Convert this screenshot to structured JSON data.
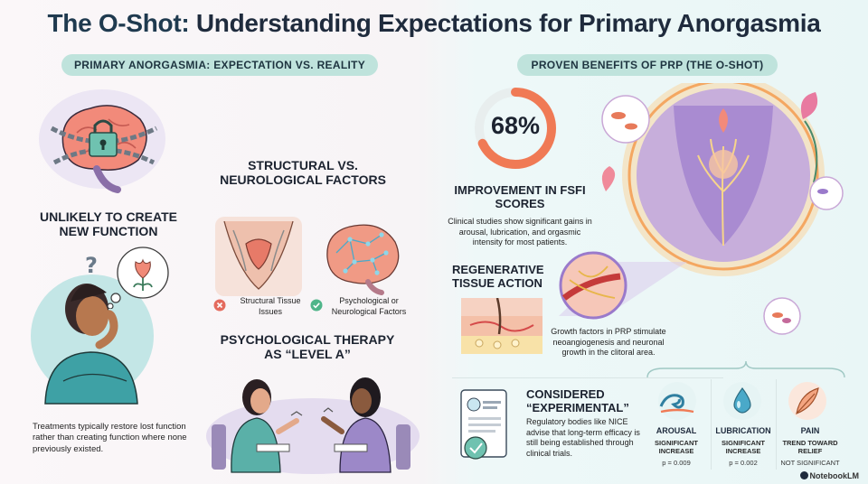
{
  "title": {
    "brand": "The O-Shot:",
    "rest": " Understanding Expectations for Primary Anorgasmia"
  },
  "left": {
    "pill": "PRIMARY ANORGASMIA: EXPECTATION VS. REALITY",
    "unlikely_heading": "UNLIKELY TO CREATE NEW FUNCTION",
    "treatments_text": "Treatments typically restore lost function rather than creating function where none previously existed.",
    "structural_heading": "STRUCTURAL VS. NEUROLOGICAL FACTORS",
    "structural_label": "Structural Tissue Issues",
    "neuro_label": "Psychological or Neurological Factors",
    "therapy_heading": "PSYCHOLOGICAL THERAPY AS “LEVEL A”"
  },
  "right": {
    "pill": "PROVEN BENEFITS OF PRP (THE O-SHOT)",
    "percent": "68%",
    "improvement_heading": "IMPROVEMENT IN FSFI SCORES",
    "improvement_text": "Clinical studies show significant gains in arousal, lubrication, and orgasmic intensity for most patients.",
    "regen_heading": "REGENERATIVE TISSUE ACTION",
    "regen_text": "Growth factors in PRP stimulate neoangiogenesis and neuronal growth in the clitoral area.",
    "experimental_heading": "CONSIDERED “EXPERIMENTAL”",
    "experimental_text": "Regulatory bodies like NICE advise that long-term efficacy is still being established through clinical trials.",
    "stats": [
      {
        "title": "AROUSAL",
        "sub": "SIGNIFICANT INCREASE",
        "p": "p = 0.009"
      },
      {
        "title": "LUBRICATION",
        "sub": "SIGNIFICANT INCREASE",
        "p": "p = 0.002"
      },
      {
        "title": "PAIN",
        "sub": "TREND TOWARD RELIEF",
        "p": "NOT SIGNIFICANT"
      }
    ]
  },
  "footer": "NotebookLM",
  "colors": {
    "pill": "#bfe3dc",
    "accent_orange": "#f07a55",
    "accent_teal": "#4aa9a9",
    "text": "#1c2330"
  },
  "icons": [
    "brain-lock-icon",
    "thinking-woman-icon",
    "flower-thought-icon",
    "pelvis-icon",
    "brain-network-icon",
    "cross-circle-icon",
    "check-circle-icon",
    "therapy-session-icon",
    "donut-gauge-icon",
    "flower-pelvis-icon",
    "tissue-layers-icon",
    "magnifier-vessel-icon",
    "document-seal-icon",
    "wave-icon",
    "droplet-icon",
    "feather-icon",
    "notebook-logo-icon"
  ]
}
